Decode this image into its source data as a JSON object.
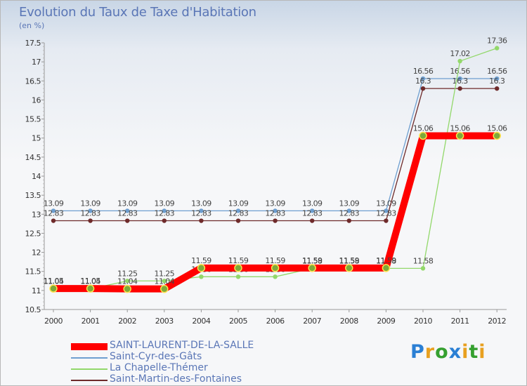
{
  "chart_data": {
    "type": "line",
    "title": "Evolution du Taux de Taxe d'Habitation",
    "subtitle": "(en %)",
    "xlabel": "",
    "ylabel": "(en %)",
    "ylim": [
      10.5,
      17.5
    ],
    "y_ticks": [
      "10.5",
      "11",
      "11.5",
      "12",
      "12.5",
      "13",
      "13.5",
      "14",
      "14.5",
      "15",
      "15.5",
      "16",
      "16.5",
      "17",
      "17.5"
    ],
    "categories": [
      "2000",
      "2001",
      "2002",
      "2003",
      "2004",
      "2005",
      "2006",
      "2007",
      "2008",
      "2009",
      "2010",
      "2011",
      "2012"
    ],
    "grid": false,
    "legend_position": "bottom-left",
    "series": [
      {
        "name": "Saint-Cyr-des-Gâts",
        "color": "#6e9fd0",
        "values": [
          13.09,
          13.09,
          13.09,
          13.09,
          13.09,
          13.09,
          13.09,
          13.09,
          13.09,
          13.09,
          16.56,
          16.56,
          16.56
        ],
        "labels": [
          "13.09",
          "13.09",
          "13.09",
          "13.09",
          "13.09",
          "13.09",
          "13.09",
          "13.09",
          "13.09",
          "13.09",
          "16.56",
          "16.56",
          "16.56"
        ]
      },
      {
        "name": "Saint-Martin-des-Fontaines",
        "color": "#6e2a2a",
        "values": [
          12.83,
          12.83,
          12.83,
          12.83,
          12.83,
          12.83,
          12.83,
          12.83,
          12.83,
          12.83,
          16.3,
          16.3,
          16.3
        ],
        "labels": [
          "12.83",
          "12.83",
          "12.83",
          "12.83",
          "12.83",
          "12.83",
          "12.83",
          "12.83",
          "12.83",
          "12.83",
          "16.3",
          "16.3",
          "16.3"
        ]
      },
      {
        "name": "La Chapelle-Thémer",
        "color": "#92d86a",
        "values": [
          11.04,
          11.04,
          11.25,
          11.25,
          11.36,
          11.36,
          11.36,
          11.58,
          11.58,
          11.58,
          11.58,
          17.02,
          17.36
        ],
        "labels": [
          "11.04",
          "11.04",
          "11.25",
          "11.25",
          "11.36",
          "11.36",
          "11.36",
          "11.58",
          "11.58",
          "11.58",
          "11.58",
          "17.02",
          "17.36"
        ]
      },
      {
        "name": "SAINT-LAURENT-DE-LA-SALLE",
        "color": "#ff0000",
        "values": [
          11.05,
          11.05,
          11.04,
          11.04,
          11.59,
          11.59,
          11.59,
          11.59,
          11.59,
          11.59,
          15.06,
          15.06,
          15.06
        ],
        "labels": [
          "11.05",
          "11.05",
          "11.04",
          "11.04",
          "11.59",
          "11.59",
          "11.59",
          "11.59",
          "11.59",
          "11.59",
          "15.06",
          "15.06",
          "15.06"
        ]
      }
    ],
    "legend": [
      {
        "name": "SAINT-LAURENT-DE-LA-SALLE",
        "color": "#ff0000",
        "style": "thick"
      },
      {
        "name": "Saint-Cyr-des-Gâts",
        "color": "#6e9fd0",
        "style": "thin"
      },
      {
        "name": "La Chapelle-Thémer",
        "color": "#92d86a",
        "style": "thin"
      },
      {
        "name": "Saint-Martin-des-Fontaines",
        "color": "#6e2a2a",
        "style": "thin"
      }
    ]
  },
  "brand": {
    "letters": [
      "P",
      "r",
      "o",
      "x",
      "i",
      "t",
      "i"
    ],
    "colors": [
      "#2a7fd4",
      "#e8a020",
      "#35a030",
      "#2a7fd4",
      "#e8a020",
      "#35a030",
      "#e8a020"
    ]
  }
}
